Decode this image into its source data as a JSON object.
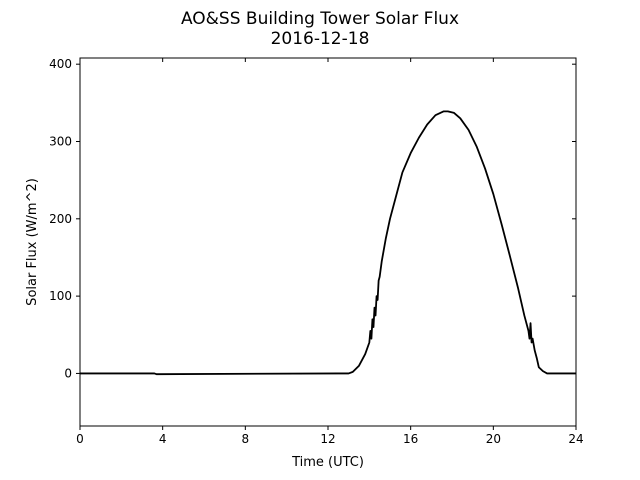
{
  "chart_data": {
    "type": "line",
    "title": "AO&SS Building Tower Solar Flux",
    "subtitle": "2016-12-18",
    "xlabel": "Time (UTC)",
    "ylabel": "Solar Flux (W/m^2)",
    "xlim": [
      0,
      24
    ],
    "ylim": [
      -68,
      408
    ],
    "xticks": [
      0,
      4,
      8,
      12,
      16,
      20,
      24
    ],
    "yticks": [
      0,
      100,
      200,
      300,
      400
    ],
    "grid": false,
    "legend": "none",
    "line_color": "#000000",
    "series": [
      {
        "x": [
          0,
          3.6,
          3.7,
          12.5,
          13.0,
          13.2,
          13.5,
          13.8,
          14.0,
          14.05,
          14.1,
          14.15,
          14.2,
          14.25,
          14.3,
          14.35,
          14.4,
          14.45,
          14.5,
          14.6,
          14.8,
          15.0,
          15.3,
          15.6,
          16.0,
          16.4,
          16.8,
          17.2,
          17.6,
          17.8,
          18.1,
          18.4,
          18.8,
          19.2,
          19.6,
          20.0,
          20.4,
          20.8,
          21.2,
          21.5,
          21.7,
          21.75,
          21.8,
          21.85,
          21.9,
          22.0,
          22.1,
          22.2,
          22.4,
          22.6,
          23.0,
          24.0
        ],
        "y": [
          0,
          0,
          -1,
          0,
          0,
          2,
          10,
          25,
          40,
          55,
          45,
          70,
          60,
          85,
          75,
          100,
          95,
          120,
          125,
          145,
          175,
          200,
          230,
          260,
          285,
          305,
          322,
          334,
          339,
          339,
          337,
          330,
          315,
          293,
          265,
          232,
          193,
          152,
          110,
          75,
          55,
          45,
          65,
          40,
          45,
          30,
          20,
          8,
          3,
          0,
          0,
          0
        ]
      }
    ]
  }
}
